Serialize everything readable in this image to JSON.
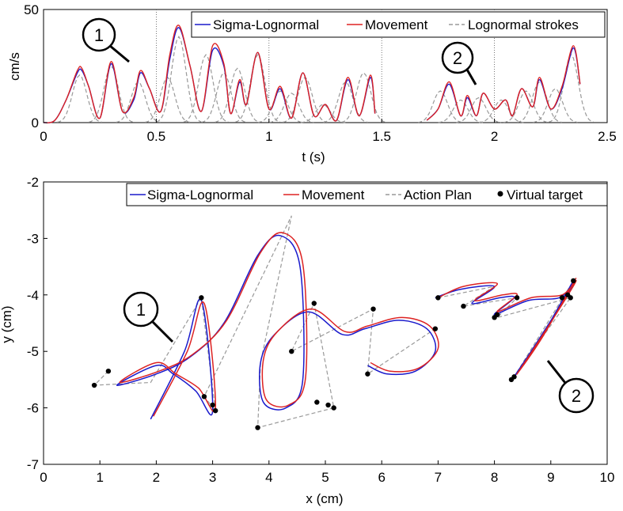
{
  "chart_data": [
    {
      "type": "line",
      "xlabel": "t (s)",
      "ylabel": "cm/s",
      "xlim": [
        0,
        2.5
      ],
      "ylim": [
        0,
        50
      ],
      "xticks": [
        "0",
        "0.5",
        "1",
        "1.5",
        "2",
        "2.5"
      ],
      "yticks": [
        "0",
        "50"
      ],
      "legend_position": "top-right",
      "legend": [
        "Sigma-Lognormal",
        "Movement",
        "Lognormal strokes"
      ],
      "grid": "dotted vertical lines at t = 0.5, 1, 1.5, 2",
      "annotations": [
        "1",
        "2"
      ],
      "series": [
        {
          "name": "Sigma-Lognormal",
          "color": "#1a1acc",
          "x": [
            0,
            0.05,
            0.1,
            0.15,
            0.17,
            0.2,
            0.25,
            0.3,
            0.35,
            0.4,
            0.43,
            0.47,
            0.52,
            0.56,
            0.6,
            0.65,
            0.7,
            0.75,
            0.8,
            0.83,
            0.87,
            0.9,
            0.95,
            1.0,
            1.05,
            1.1,
            1.15,
            1.2,
            1.25,
            1.3,
            1.35,
            1.4,
            1.45,
            1.47
          ],
          "y": [
            0,
            1,
            10,
            22,
            23,
            16,
            2,
            26,
            5,
            10,
            22,
            15,
            5,
            28,
            42,
            25,
            5,
            32,
            25,
            4,
            18,
            8,
            31,
            6,
            15,
            2,
            22,
            3,
            8,
            1,
            19,
            3,
            20,
            4
          ]
        },
        {
          "name": "",
          "color": "#1a1acc",
          "x": [
            1.7,
            1.75,
            1.8,
            1.85,
            1.88,
            1.92,
            1.95,
            2.0,
            2.05,
            2.08,
            2.12,
            2.17,
            2.2,
            2.25,
            2.3,
            2.35,
            2.38
          ],
          "y": [
            1,
            6,
            17,
            3,
            11,
            3,
            13,
            6,
            10,
            3,
            15,
            7,
            19,
            6,
            15,
            33,
            17
          ]
        },
        {
          "name": "Movement",
          "color": "#dd2222",
          "x": [
            0,
            0.05,
            0.1,
            0.15,
            0.17,
            0.2,
            0.25,
            0.3,
            0.35,
            0.4,
            0.43,
            0.47,
            0.52,
            0.56,
            0.6,
            0.65,
            0.7,
            0.75,
            0.8,
            0.83,
            0.87,
            0.9,
            0.95,
            1.0,
            1.05,
            1.1,
            1.15,
            1.2,
            1.25,
            1.3,
            1.35,
            1.4,
            1.45,
            1.47
          ],
          "y": [
            0,
            1,
            10,
            23,
            24,
            16,
            2,
            27,
            5,
            11,
            23,
            15,
            5,
            30,
            43,
            25,
            5,
            34,
            26,
            4,
            19,
            8,
            31,
            6,
            16,
            2,
            22,
            3,
            8,
            1,
            20,
            3,
            21,
            4
          ]
        },
        {
          "name": "",
          "color": "#dd2222",
          "x": [
            1.7,
            1.75,
            1.8,
            1.85,
            1.88,
            1.92,
            1.95,
            2.0,
            2.05,
            2.08,
            2.12,
            2.17,
            2.2,
            2.25,
            2.3,
            2.35,
            2.38
          ],
          "y": [
            1,
            6,
            18,
            3,
            12,
            3,
            13,
            6,
            10,
            3,
            15,
            7,
            20,
            6,
            16,
            34,
            17
          ]
        }
      ]
    },
    {
      "type": "line",
      "xlabel": "x (cm)",
      "ylabel": "y (cm)",
      "xlim": [
        0,
        10
      ],
      "ylim": [
        -7,
        -2
      ],
      "xticks": [
        "0",
        "1",
        "2",
        "3",
        "4",
        "5",
        "6",
        "7",
        "8",
        "9",
        "10"
      ],
      "yticks": [
        "-2",
        "-3",
        "-4",
        "-5",
        "-6",
        "-7"
      ],
      "legend_position": "top-right",
      "legend": [
        "Sigma-Lognormal",
        "Movement",
        "Action Plan",
        "Virtual target"
      ],
      "annotations": [
        "1",
        "2"
      ],
      "virtual_targets": {
        "x": [
          0.9,
          1.15,
          2.8,
          2.85,
          3.0,
          3.05,
          3.8,
          4.8,
          4.85,
          5.05,
          5.15,
          4.4,
          5.75,
          5.85,
          6.95,
          7.0,
          7.45,
          8.0,
          8.05,
          8.4,
          8.3,
          8.35,
          9.2,
          9.3,
          9.4,
          9.35
        ],
        "y": [
          -5.6,
          -5.35,
          -4.05,
          -5.8,
          -5.95,
          -6.05,
          -6.35,
          -4.15,
          -5.9,
          -5.95,
          -6.0,
          -5.0,
          -5.4,
          -4.25,
          -4.6,
          -4.05,
          -4.2,
          -4.4,
          -4.35,
          -4.05,
          -5.5,
          -5.45,
          -4.05,
          -4.0,
          -3.75,
          -4.05
        ]
      },
      "series": [
        {
          "name": "Sigma-Lognormal",
          "color": "#1a1acc",
          "x": [
            1.9,
            2.5,
            2.8,
            3.0,
            2.7,
            2.3,
            2.0,
            1.3,
            2.0,
            2.6,
            3.2,
            3.8,
            4.2,
            4.55,
            4.6,
            4.3,
            3.9,
            3.85,
            4.1,
            4.7,
            5.3,
            5.7,
            6.3,
            6.8,
            6.95,
            6.6,
            6.1,
            5.75
          ],
          "y": [
            -6.2,
            -5.0,
            -4.1,
            -6.05,
            -5.7,
            -5.4,
            -5.25,
            -5.6,
            -5.4,
            -5.1,
            -4.5,
            -3.3,
            -2.95,
            -3.5,
            -5.5,
            -6.0,
            -5.9,
            -5.2,
            -4.7,
            -4.3,
            -4.7,
            -4.6,
            -4.45,
            -4.6,
            -5.0,
            -5.35,
            -5.4,
            -5.25
          ]
        },
        {
          "name": "Movement",
          "color": "#dd2222",
          "x": [
            1.95,
            2.55,
            2.85,
            3.05,
            2.75,
            2.35,
            2.0,
            1.35,
            2.05,
            2.65,
            3.25,
            3.85,
            4.25,
            4.6,
            4.65,
            4.35,
            3.95,
            3.9,
            4.15,
            4.75,
            5.35,
            5.75,
            6.35,
            6.85,
            7.0,
            6.65,
            6.15,
            5.8
          ],
          "y": [
            -6.15,
            -5.0,
            -4.15,
            -6.0,
            -5.65,
            -5.4,
            -5.2,
            -5.55,
            -5.35,
            -5.05,
            -4.45,
            -3.25,
            -2.9,
            -3.45,
            -5.45,
            -5.95,
            -5.85,
            -5.15,
            -4.65,
            -4.25,
            -4.65,
            -4.55,
            -4.4,
            -4.55,
            -4.95,
            -5.3,
            -5.35,
            -5.2
          ]
        }
      ]
    }
  ],
  "markers": {
    "top_1": "1",
    "top_2": "2",
    "bottom_1": "1",
    "bottom_2": "2"
  }
}
